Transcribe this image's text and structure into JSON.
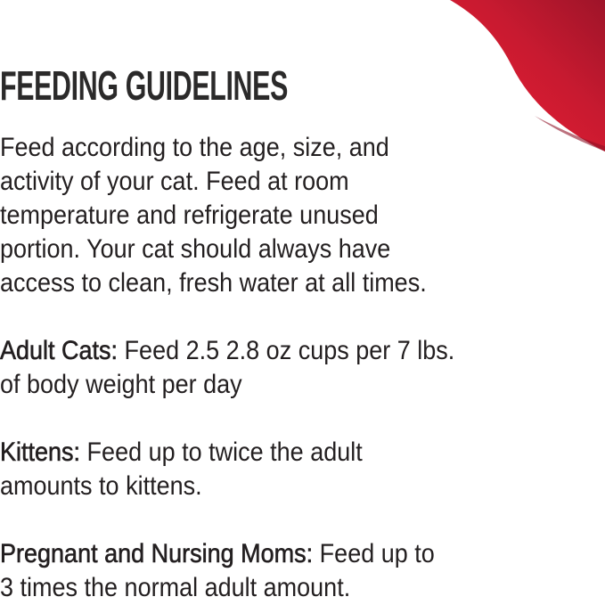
{
  "title": "FEEDING GUIDELINES",
  "intro_lines": [
    "Feed according to the age, size, and",
    "activity of your cat. Feed at room",
    "temperature and refrigerate unused",
    "portion. Your cat should always have",
    "access to clean, fresh water at all times."
  ],
  "adult": {
    "label": "Adult Cats:",
    "line1": " Feed 2.5 2.8 oz cups per 7 lbs.",
    "line2": "of body weight per day"
  },
  "kittens": {
    "label": "Kittens:",
    "line1": " Feed up to twice the adult",
    "line2": "amounts to kittens."
  },
  "moms": {
    "label": "Pregnant and Nursing Moms:",
    "line1": " Feed up to",
    "line2": "3 times the normal adult amount."
  },
  "colors": {
    "accent": "#e31b2f",
    "accent_dark": "#a3172c",
    "text": "#231f20"
  }
}
